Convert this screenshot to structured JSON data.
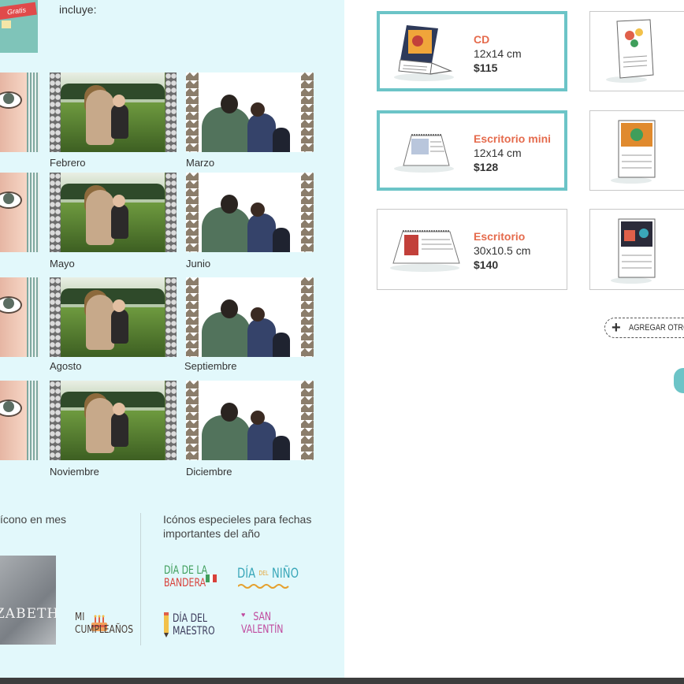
{
  "left_panel": {
    "intro": {
      "text": "incluye:",
      "thumb_ribbon": "Gratis"
    },
    "months": [
      "Febrero",
      "Marzo",
      "Mayo",
      "Junio",
      "Agosto",
      "Septiembre",
      "Noviembre",
      "Diciembre"
    ],
    "bottom": {
      "left_caption": "ícono en mes",
      "photo_name": "ZABETH",
      "cumple_lines": [
        "MI",
        "CUMPLEAÑOS"
      ],
      "right_caption_lines": [
        "Icónos especieles para fechas",
        "importantes del año"
      ],
      "icons": {
        "bandera": [
          "DÍA DE LA",
          "BANDERA"
        ],
        "nino": [
          "DÍA",
          "DEL",
          "NIÑO"
        ],
        "maestro": [
          "DÍA DEL",
          "MAESTRO"
        ],
        "valentin": [
          "SAN",
          "VALENTÍN"
        ]
      }
    }
  },
  "calendars": [
    {
      "name": "CD",
      "size": "12x14 cm",
      "price": "$115",
      "selected": true
    },
    {
      "name": "Escritorio mini",
      "size": "12x14 cm",
      "price": "$128",
      "selected": true
    },
    {
      "name": "Escritorio",
      "size": "30x10.5 cm",
      "price": "$140",
      "selected": false
    }
  ],
  "add_button": {
    "label": "AGREGAR OTRO M"
  },
  "colors": {
    "left_bg": "#e2f8fb",
    "accent_teal": "#6cc4c7",
    "title_orange": "#e56b4d"
  }
}
